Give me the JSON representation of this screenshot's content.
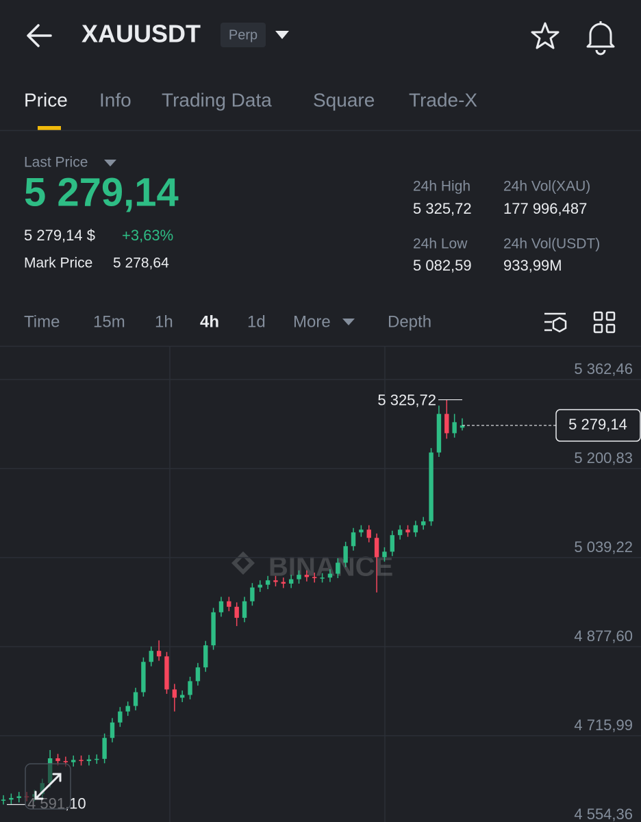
{
  "header": {
    "symbol": "XAUUSDT",
    "badge": "Perp"
  },
  "tabs": [
    "Price",
    "Info",
    "Trading Data",
    "Square",
    "Trade-X"
  ],
  "price": {
    "last_price_label": "Last Price",
    "last_price": "5 279,14",
    "usd_price": "5 279,14 $",
    "change": "+3,63%",
    "mark_price_label": "Mark Price",
    "mark_price": "5 278,64"
  },
  "stats": [
    {
      "label": "24h High",
      "value": "5 325,72"
    },
    {
      "label": "24h Vol(XAU)",
      "value": "177 996,487"
    },
    {
      "label": "24h Low",
      "value": "5 082,59"
    },
    {
      "label": "24h Vol(USDT)",
      "value": "933,99M"
    }
  ],
  "intervals": [
    "Time",
    "15m",
    "1h",
    "4h",
    "1d",
    "More",
    "Depth"
  ],
  "chart_data": {
    "type": "candlestick",
    "watermark": "BINANCE",
    "open": [
      4598,
      4600,
      4603,
      4606,
      4605,
      4610,
      4630,
      4675,
      4670,
      4668,
      4672,
      4670,
      4673,
      4674,
      4712,
      4740,
      4760,
      4770,
      4795,
      4850,
      4870,
      4860,
      4800,
      4785,
      4790,
      4815,
      4840,
      4880,
      4940,
      4960,
      4950,
      4930,
      4960,
      4985,
      4990,
      4998,
      4995,
      4992,
      5000,
      5008,
      5004,
      5002,
      5003,
      5010,
      5030,
      5060,
      5085,
      5090,
      5075,
      5040,
      5050,
      5080,
      5090,
      5085,
      5098,
      5105,
      5230,
      5300,
      5265,
      5275
    ],
    "high": [
      4608,
      4611,
      4614,
      4614,
      4618,
      4638,
      4690,
      4683,
      4678,
      4680,
      4680,
      4681,
      4682,
      4720,
      4748,
      4768,
      4778,
      4803,
      4858,
      4878,
      4889,
      4868,
      4810,
      4798,
      4823,
      4848,
      4888,
      4948,
      4968,
      4968,
      4958,
      4968,
      4993,
      4998,
      5006,
      5006,
      5003,
      5008,
      5016,
      5016,
      5012,
      5011,
      5018,
      5038,
      5068,
      5093,
      5098,
      5098,
      5083,
      5058,
      5088,
      5098,
      5098,
      5106,
      5113,
      5238,
      5315,
      5325.72,
      5300,
      5292
    ],
    "low": [
      4591.1,
      4592,
      4595,
      4597,
      4597,
      4602,
      4622,
      4662,
      4660,
      4660,
      4662,
      4662,
      4665,
      4666,
      4704,
      4732,
      4752,
      4762,
      4787,
      4842,
      4852,
      4792,
      4760,
      4777,
      4782,
      4807,
      4832,
      4872,
      4932,
      4942,
      4915,
      4922,
      4952,
      4977,
      4982,
      4987,
      4984,
      4984,
      4992,
      4996,
      4994,
      4994,
      4995,
      5002,
      5022,
      5052,
      5077,
      5067,
      4976,
      5032,
      5042,
      5072,
      5077,
      5077,
      5090,
      5097,
      5222,
      5255,
      5257,
      5270
    ],
    "close": [
      4600,
      4603,
      4606,
      4605,
      4610,
      4630,
      4675,
      4670,
      4668,
      4672,
      4670,
      4673,
      4674,
      4712,
      4740,
      4760,
      4770,
      4795,
      4850,
      4870,
      4860,
      4800,
      4785,
      4790,
      4815,
      4840,
      4880,
      4940,
      4960,
      4950,
      4930,
      4960,
      4985,
      4990,
      4998,
      4995,
      4992,
      5000,
      5008,
      5004,
      5002,
      5003,
      5010,
      5030,
      5060,
      5085,
      5090,
      5075,
      5040,
      5050,
      5080,
      5090,
      5085,
      5098,
      5105,
      5230,
      5300,
      5265,
      5285,
      5279.14
    ],
    "colors": {
      "up": "#2ebd85",
      "down": "#f6465d"
    },
    "ylim": [
      4559.4,
      5423.4
    ],
    "yticks": [
      {
        "value": 5362.46,
        "label": "5 362,46"
      },
      {
        "value": 5200.83,
        "label": "5 200,83"
      },
      {
        "value": 5039.22,
        "label": "5 039,22"
      },
      {
        "value": 4877.6,
        "label": "4 877,60"
      },
      {
        "value": 4715.99,
        "label": "4 715,99"
      },
      {
        "value": 4554.36,
        "label": "4 554,36"
      }
    ],
    "grid": true,
    "high_marker": {
      "value": 5325.72,
      "label": "5 325,72"
    },
    "last_marker": {
      "value": 5279.14,
      "label": "5 279,14"
    },
    "low_marker": {
      "value": 4591.1,
      "label": "4 591,10"
    }
  }
}
